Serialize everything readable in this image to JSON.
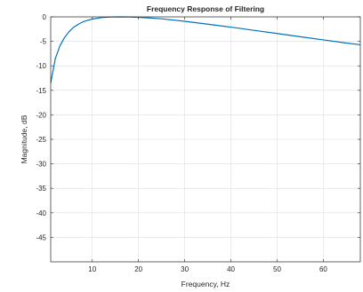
{
  "chart_data": {
    "type": "line",
    "title": "Frequency Response of Filtering",
    "xlabel": "Frequency, Hz",
    "ylabel": "Magnitude, dB",
    "xlim": [
      1,
      68
    ],
    "ylim": [
      -50,
      0
    ],
    "xticks": [
      10,
      20,
      30,
      40,
      50,
      60
    ],
    "yticks": [
      0,
      -5,
      -10,
      -15,
      -20,
      -25,
      -30,
      -35,
      -40,
      -45
    ],
    "grid": true,
    "series": [
      {
        "color": "#0072bd",
        "x": [
          1,
          2,
          3,
          4,
          5,
          6,
          7,
          8,
          9,
          10,
          12,
          14,
          16,
          18,
          20,
          22,
          25,
          30,
          35,
          40,
          45,
          50,
          55,
          60,
          65,
          68
        ],
        "y": [
          -13.5,
          -8.5,
          -5.9,
          -4.2,
          -3.0,
          -2.1,
          -1.5,
          -1.0,
          -0.7,
          -0.45,
          -0.15,
          -0.03,
          0,
          -0.02,
          -0.1,
          -0.2,
          -0.4,
          -0.9,
          -1.5,
          -2.1,
          -2.75,
          -3.4,
          -4.05,
          -4.7,
          -5.35,
          -5.7
        ]
      }
    ]
  }
}
